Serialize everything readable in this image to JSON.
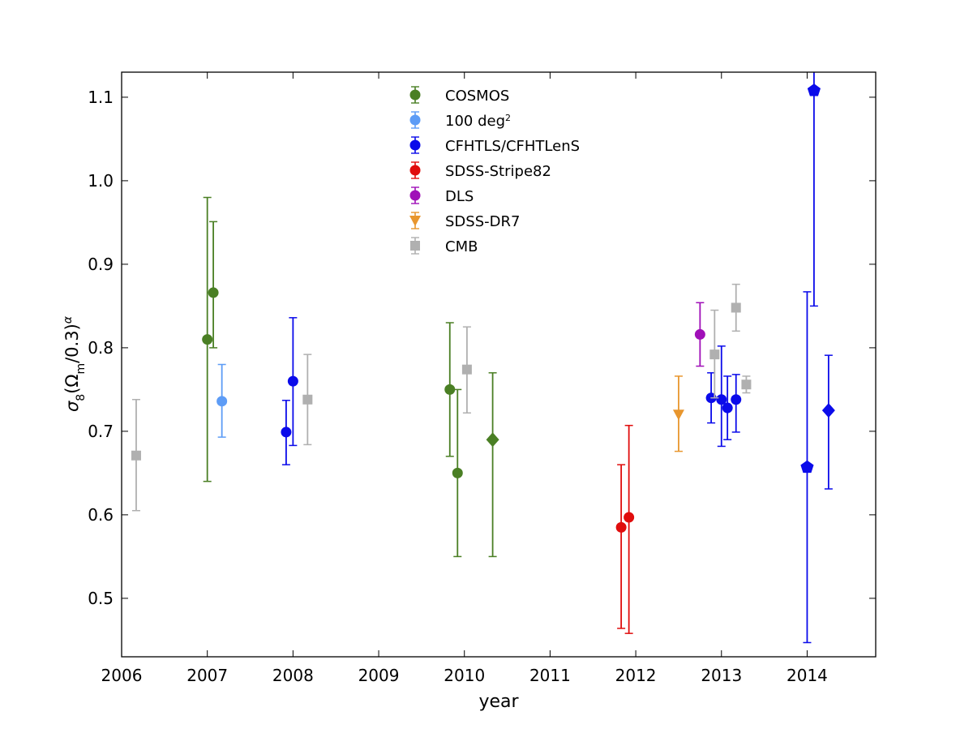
{
  "chart_data": {
    "type": "scatter",
    "title": "",
    "xlabel": "year",
    "ylabel_parts": {
      "sigma": "σ",
      "sub8": "8",
      "open": "(Ω",
      "subm": "m",
      "mid": "/0.3)",
      "sup": "α"
    },
    "xlim": [
      2006,
      2014.8
    ],
    "ylim": [
      0.43,
      1.13
    ],
    "xticks": [
      "2006",
      "2007",
      "2008",
      "2009",
      "2010",
      "2011",
      "2012",
      "2013",
      "2014"
    ],
    "yticks": [
      "0.5",
      "0.6",
      "0.7",
      "0.8",
      "0.9",
      "1.0",
      "1.1"
    ],
    "grid": false,
    "legend_position": "top-center",
    "legend": [
      {
        "label": "COSMOS",
        "sup": "",
        "color": "#4a7f24",
        "marker": "circle"
      },
      {
        "label": "100 deg",
        "sup": "2",
        "color": "#5d9cf6",
        "marker": "circle"
      },
      {
        "label": "CFHTLS/CFHTLenS",
        "sup": "",
        "color": "#0b0bea",
        "marker": "circle"
      },
      {
        "label": "SDSS-Stripe82",
        "sup": "",
        "color": "#e00d0d",
        "marker": "circle"
      },
      {
        "label": "DLS",
        "sup": "",
        "color": "#a010b8",
        "marker": "circle"
      },
      {
        "label": "SDSS-DR7",
        "sup": "",
        "color": "#e8962e",
        "marker": "triangle-down"
      },
      {
        "label": "CMB",
        "sup": "",
        "color": "#b0b0b0",
        "marker": "square"
      }
    ],
    "series": [
      {
        "name": "COSMOS",
        "color": "#4a7f24",
        "points": [
          {
            "x": 2007.0,
            "y": 0.81,
            "lo": 0.64,
            "hi": 0.98,
            "marker": "circle"
          },
          {
            "x": 2007.07,
            "y": 0.866,
            "lo": 0.8,
            "hi": 0.951,
            "marker": "circle"
          },
          {
            "x": 2009.83,
            "y": 0.75,
            "lo": 0.67,
            "hi": 0.83,
            "marker": "circle"
          },
          {
            "x": 2009.92,
            "y": 0.65,
            "lo": 0.55,
            "hi": 0.75,
            "marker": "circle"
          },
          {
            "x": 2010.33,
            "y": 0.69,
            "lo": 0.55,
            "hi": 0.77,
            "marker": "diamond"
          }
        ]
      },
      {
        "name": "100 deg2",
        "color": "#5d9cf6",
        "points": [
          {
            "x": 2007.17,
            "y": 0.736,
            "lo": 0.693,
            "hi": 0.78,
            "marker": "circle"
          }
        ]
      },
      {
        "name": "CFHTLS/CFHTLenS",
        "color": "#0b0bea",
        "points": [
          {
            "x": 2007.92,
            "y": 0.699,
            "lo": 0.66,
            "hi": 0.737,
            "marker": "circle"
          },
          {
            "x": 2008.0,
            "y": 0.76,
            "lo": 0.683,
            "hi": 0.836,
            "marker": "circle"
          },
          {
            "x": 2012.88,
            "y": 0.74,
            "lo": 0.71,
            "hi": 0.77,
            "marker": "circle"
          },
          {
            "x": 2013.0,
            "y": 0.738,
            "lo": 0.682,
            "hi": 0.802,
            "marker": "circle"
          },
          {
            "x": 2013.07,
            "y": 0.728,
            "lo": 0.69,
            "hi": 0.766,
            "marker": "circle"
          },
          {
            "x": 2013.17,
            "y": 0.738,
            "lo": 0.699,
            "hi": 0.768,
            "marker": "circle"
          },
          {
            "x": 2014.0,
            "y": 0.657,
            "lo": 0.447,
            "hi": 0.867,
            "marker": "pentagon"
          },
          {
            "x": 2014.08,
            "y": 1.108,
            "lo": 0.85,
            "hi": 1.14,
            "marker": "pentagon"
          },
          {
            "x": 2014.25,
            "y": 0.725,
            "lo": 0.631,
            "hi": 0.791,
            "marker": "diamond"
          }
        ]
      },
      {
        "name": "SDSS-Stripe82",
        "color": "#e00d0d",
        "points": [
          {
            "x": 2011.83,
            "y": 0.585,
            "lo": 0.464,
            "hi": 0.66,
            "marker": "circle"
          },
          {
            "x": 2011.92,
            "y": 0.597,
            "lo": 0.458,
            "hi": 0.707,
            "marker": "circle"
          }
        ]
      },
      {
        "name": "DLS",
        "color": "#a010b8",
        "points": [
          {
            "x": 2012.75,
            "y": 0.816,
            "lo": 0.778,
            "hi": 0.854,
            "marker": "circle"
          }
        ]
      },
      {
        "name": "SDSS-DR7",
        "color": "#e8962e",
        "points": [
          {
            "x": 2012.5,
            "y": 0.72,
            "lo": 0.676,
            "hi": 0.766,
            "marker": "triangle-down"
          }
        ]
      },
      {
        "name": "CMB",
        "color": "#b0b0b0",
        "points": [
          {
            "x": 2006.17,
            "y": 0.671,
            "lo": 0.605,
            "hi": 0.738,
            "marker": "square"
          },
          {
            "x": 2008.17,
            "y": 0.738,
            "lo": 0.684,
            "hi": 0.792,
            "marker": "square"
          },
          {
            "x": 2010.03,
            "y": 0.774,
            "lo": 0.722,
            "hi": 0.825,
            "marker": "square"
          },
          {
            "x": 2012.92,
            "y": 0.792,
            "lo": 0.74,
            "hi": 0.845,
            "marker": "square"
          },
          {
            "x": 2013.17,
            "y": 0.848,
            "lo": 0.82,
            "hi": 0.876,
            "marker": "square"
          },
          {
            "x": 2013.29,
            "y": 0.756,
            "lo": 0.746,
            "hi": 0.766,
            "marker": "square"
          }
        ]
      }
    ]
  }
}
